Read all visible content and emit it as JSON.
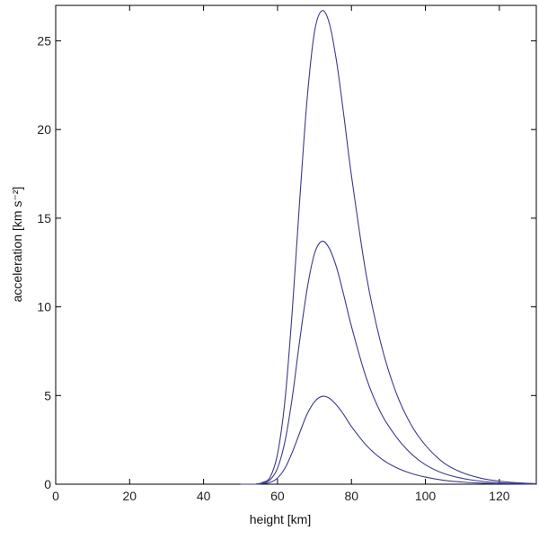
{
  "chart_data": {
    "type": "line",
    "title": "",
    "xlabel": "height [km]",
    "ylabel": "acceleration [km s⁻²]",
    "xlim": [
      0,
      130
    ],
    "ylim": [
      0,
      27
    ],
    "grid": false,
    "x_ticks": [
      0,
      20,
      40,
      60,
      80,
      100,
      120
    ],
    "y_ticks": [
      0,
      5,
      10,
      15,
      20,
      25
    ],
    "series_color": "#3a3a8c",
    "series": [
      {
        "x": [
          50,
          54,
          56,
          58,
          60,
          62,
          64,
          66,
          68,
          70,
          72,
          74,
          76,
          78,
          80,
          84,
          88,
          92,
          96,
          100,
          105,
          110,
          115,
          120,
          125,
          130
        ],
        "y": [
          0,
          0.0,
          0.1,
          0.4,
          1.7,
          4.7,
          9.8,
          16.0,
          21.7,
          25.5,
          26.7,
          26.0,
          23.8,
          20.7,
          17.4,
          11.8,
          7.9,
          5.2,
          3.4,
          2.2,
          1.2,
          0.65,
          0.34,
          0.17,
          0.08,
          0.03
        ]
      },
      {
        "x": [
          50,
          54,
          56,
          58,
          60,
          62,
          64,
          66,
          68,
          70,
          72,
          74,
          76,
          78,
          80,
          84,
          88,
          92,
          96,
          100,
          105,
          110,
          115,
          120,
          125,
          130
        ],
        "y": [
          0,
          0.0,
          0.06,
          0.25,
          0.9,
          2.4,
          4.9,
          8.1,
          11.0,
          13.0,
          13.7,
          13.3,
          12.2,
          10.6,
          8.9,
          6.0,
          4.0,
          2.7,
          1.75,
          1.1,
          0.6,
          0.33,
          0.17,
          0.08,
          0.04,
          0.02
        ]
      },
      {
        "x": [
          50,
          54,
          56,
          58,
          60,
          62,
          64,
          66,
          68,
          70,
          72,
          74,
          76,
          78,
          80,
          84,
          88,
          92,
          96,
          100,
          105,
          110,
          115,
          120,
          125,
          130
        ],
        "y": [
          0,
          0.0,
          0.03,
          0.1,
          0.35,
          0.9,
          1.8,
          2.9,
          3.95,
          4.65,
          4.95,
          4.85,
          4.45,
          3.9,
          3.25,
          2.2,
          1.45,
          0.95,
          0.62,
          0.4,
          0.22,
          0.12,
          0.06,
          0.03,
          0.015,
          0.005
        ]
      }
    ]
  }
}
